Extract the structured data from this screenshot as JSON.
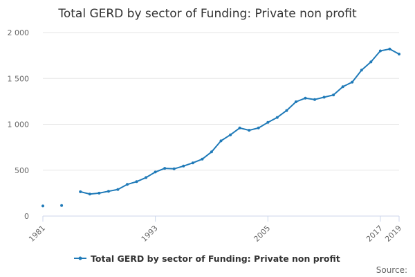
{
  "chart_data": {
    "type": "line",
    "title": "Total GERD by sector of Funding: Private non profit",
    "xlabel": "",
    "ylabel": "",
    "xlim": [
      1981,
      2019
    ],
    "ylim": [
      0,
      2000
    ],
    "y_ticks": [
      0,
      500,
      1000,
      1500,
      2000
    ],
    "y_tick_labels": [
      "0",
      "500",
      "1 000",
      "1 500",
      "2 000"
    ],
    "x_ticks": [
      1981,
      1993,
      2005,
      2017,
      2019
    ],
    "x_tick_labels": [
      "1981",
      "1993",
      "2005",
      "2017",
      "2019"
    ],
    "grid": "horizontal",
    "legend_position": "bottom",
    "series": [
      {
        "name": "Total GERD by sector of Funding: Private non profit",
        "color": "#1f7ab8",
        "points": [
          {
            "x": 1981,
            "y": 110
          },
          {
            "x": 1983,
            "y": 115
          },
          {
            "x": 1985,
            "y": 265
          },
          {
            "x": 1986,
            "y": 240
          },
          {
            "x": 1987,
            "y": 250
          },
          {
            "x": 1988,
            "y": 270
          },
          {
            "x": 1989,
            "y": 290
          },
          {
            "x": 1990,
            "y": 345
          },
          {
            "x": 1991,
            "y": 375
          },
          {
            "x": 1992,
            "y": 420
          },
          {
            "x": 1993,
            "y": 480
          },
          {
            "x": 1994,
            "y": 520
          },
          {
            "x": 1995,
            "y": 515
          },
          {
            "x": 1996,
            "y": 545
          },
          {
            "x": 1997,
            "y": 580
          },
          {
            "x": 1998,
            "y": 620
          },
          {
            "x": 1999,
            "y": 700
          },
          {
            "x": 2000,
            "y": 820
          },
          {
            "x": 2001,
            "y": 885
          },
          {
            "x": 2002,
            "y": 960
          },
          {
            "x": 2003,
            "y": 935
          },
          {
            "x": 2004,
            "y": 960
          },
          {
            "x": 2005,
            "y": 1020
          },
          {
            "x": 2006,
            "y": 1075
          },
          {
            "x": 2007,
            "y": 1150
          },
          {
            "x": 2008,
            "y": 1245
          },
          {
            "x": 2009,
            "y": 1285
          },
          {
            "x": 2010,
            "y": 1270
          },
          {
            "x": 2011,
            "y": 1295
          },
          {
            "x": 2012,
            "y": 1320
          },
          {
            "x": 2013,
            "y": 1410
          },
          {
            "x": 2014,
            "y": 1460
          },
          {
            "x": 2015,
            "y": 1590
          },
          {
            "x": 2016,
            "y": 1680
          },
          {
            "x": 2017,
            "y": 1800
          },
          {
            "x": 2018,
            "y": 1820
          },
          {
            "x": 2019,
            "y": 1765
          }
        ]
      }
    ],
    "credit": "Source:"
  }
}
